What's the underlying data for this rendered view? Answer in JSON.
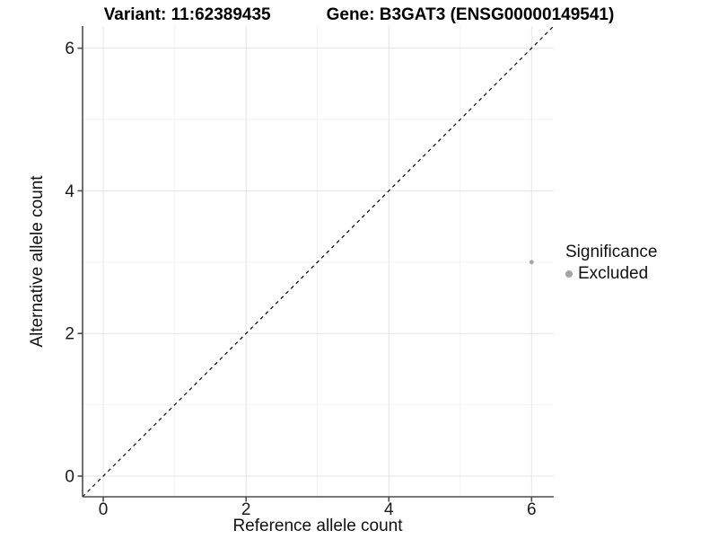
{
  "header": {
    "title_left": "Variant: 11:62389435",
    "title_right": "Gene: B3GAT3 (ENSG00000149541)"
  },
  "chart_data": {
    "type": "scatter",
    "title": "Variant: 11:62389435 / Gene: B3GAT3 (ENSG00000149541)",
    "xlabel": "Reference allele count",
    "ylabel": "Alternative allele count",
    "xlim": [
      -0.29,
      6.31
    ],
    "ylim": [
      -0.29,
      6.31
    ],
    "xticks": [
      0,
      2,
      4,
      6
    ],
    "yticks": [
      0,
      2,
      4,
      6
    ],
    "xminor": [
      1,
      3,
      5
    ],
    "yminor": [
      1,
      3,
      5
    ],
    "grid": "on",
    "identity_line": {
      "style": "dashed",
      "color": "#000000",
      "slope": 1,
      "intercept": 0
    },
    "series": [
      {
        "name": "Excluded",
        "color": "#a5a5a5",
        "points": [
          {
            "x": 6,
            "y": 3
          }
        ]
      }
    ],
    "legend": {
      "title": "Significance",
      "position": "right",
      "items": [
        {
          "label": "Excluded",
          "color": "#a5a5a5"
        }
      ]
    }
  },
  "colors": {
    "background": "#ffffff",
    "grid_major": "#e5e5e5",
    "grid_minor": "#f2f2f2",
    "axis_line": "#4d4d4d",
    "text": "#000000",
    "point": "#a5a5a5"
  }
}
